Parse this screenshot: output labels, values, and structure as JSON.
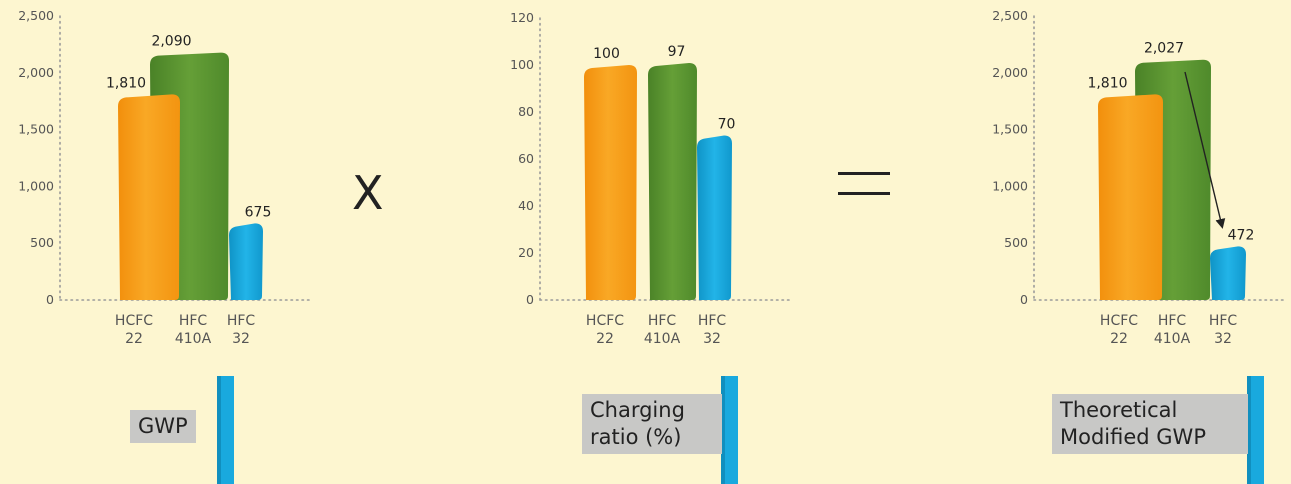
{
  "operators": {
    "times": "X",
    "equals": "="
  },
  "chart_data": [
    {
      "type": "bar",
      "caption": "GWP",
      "categories": [
        "HCFC 22",
        "HFC 410A",
        "HFC 32"
      ],
      "tick_lines": [
        [
          "HCFC",
          "22"
        ],
        [
          "HFC",
          "410A"
        ],
        [
          "HFC",
          "32"
        ]
      ],
      "values": [
        1810,
        2090,
        675
      ],
      "value_labels": [
        "1,810",
        "2,090",
        "675"
      ],
      "ylim": [
        0,
        2500
      ],
      "yticks": [
        0,
        500,
        1000,
        1500,
        2000,
        2500
      ],
      "ytick_labels": [
        "0",
        "500",
        "1,000",
        "1,500",
        "2,000",
        "2,500"
      ],
      "grid": false
    },
    {
      "type": "bar",
      "caption": "Charging ratio (%)",
      "caption_lines": [
        "Charging",
        "ratio (%)"
      ],
      "categories": [
        "HCFC 22",
        "HFC 410A",
        "HFC 32"
      ],
      "tick_lines": [
        [
          "HCFC",
          "22"
        ],
        [
          "HFC",
          "410A"
        ],
        [
          "HFC",
          "32"
        ]
      ],
      "values": [
        100,
        97,
        70
      ],
      "value_labels": [
        "100",
        "97",
        "70"
      ],
      "ylim": [
        0,
        120
      ],
      "yticks": [
        0,
        20,
        40,
        60,
        80,
        100,
        120
      ],
      "ytick_labels": [
        "0",
        "20",
        "40",
        "60",
        "80",
        "100",
        "120"
      ],
      "grid": false
    },
    {
      "type": "bar",
      "caption": "Theoretical Modified GWP",
      "caption_lines": [
        "Theoretical",
        "Modified GWP"
      ],
      "categories": [
        "HCFC 22",
        "HFC 410A",
        "HFC 32"
      ],
      "tick_lines": [
        [
          "HCFC",
          "22"
        ],
        [
          "HFC",
          "410A"
        ],
        [
          "HFC",
          "32"
        ]
      ],
      "values": [
        1810,
        2027,
        472
      ],
      "value_labels": [
        "1,810",
        "2,027",
        "472"
      ],
      "ylim": [
        0,
        2500
      ],
      "yticks": [
        0,
        500,
        1000,
        1500,
        2000,
        2500
      ],
      "ytick_labels": [
        "0",
        "500",
        "1,000",
        "1,500",
        "2,000",
        "2,500"
      ],
      "grid": false,
      "annotation": {
        "type": "arrow",
        "from": "HFC 410A",
        "to": "HFC 32"
      }
    }
  ],
  "colors": {
    "background": "#fdf6d0",
    "hcfc22": "#f7a11a",
    "hfc410a": "#5f9a34",
    "hfc32": "#1aaee3",
    "caption_box": "#c8c8c6",
    "caption_flag": "#19a9de",
    "axis": "#9a9a9a",
    "text": "#444444"
  }
}
